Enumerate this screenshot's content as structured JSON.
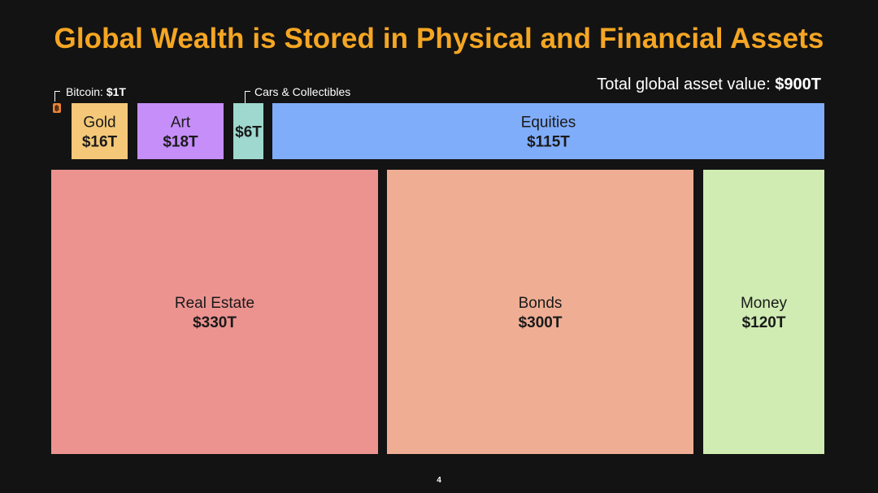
{
  "title": "Global Wealth is Stored in Physical and Financial Assets",
  "total_label": "Total global asset value: ",
  "total_value": "$900T",
  "page_number": "4",
  "colors": {
    "title": "#f5a623",
    "background": "#131313",
    "text_on_tiles": "#1a1a1a"
  },
  "bitcoin_icon": "bitcoin-icon",
  "callouts": {
    "bitcoin": {
      "name": "Bitcoin: ",
      "value": "$1T"
    },
    "cars": {
      "label": "Cars & Collectibles"
    }
  },
  "chart_data": {
    "type": "treemap",
    "title": "Global Wealth is Stored in Physical and Financial Assets",
    "unit": "trillion USD",
    "total": 900,
    "items": [
      {
        "name": "Bitcoin",
        "value": 1,
        "value_label": "$1T",
        "color": "#e8823a"
      },
      {
        "name": "Gold",
        "value": 16,
        "value_label": "$16T",
        "color": "#f4c878"
      },
      {
        "name": "Art",
        "value": 18,
        "value_label": "$18T",
        "color": "#c58ef9"
      },
      {
        "name": "Cars & Collectibles",
        "value": 6,
        "value_label": "$6T",
        "color": "#9ed8cf"
      },
      {
        "name": "Equities",
        "value": 115,
        "value_label": "$115T",
        "color": "#80adfa"
      },
      {
        "name": "Real Estate",
        "value": 330,
        "value_label": "$330T",
        "color": "#ec9390"
      },
      {
        "name": "Bonds",
        "value": 300,
        "value_label": "$300T",
        "color": "#efae94"
      },
      {
        "name": "Money",
        "value": 120,
        "value_label": "$120T",
        "color": "#d0ecb2"
      }
    ]
  }
}
